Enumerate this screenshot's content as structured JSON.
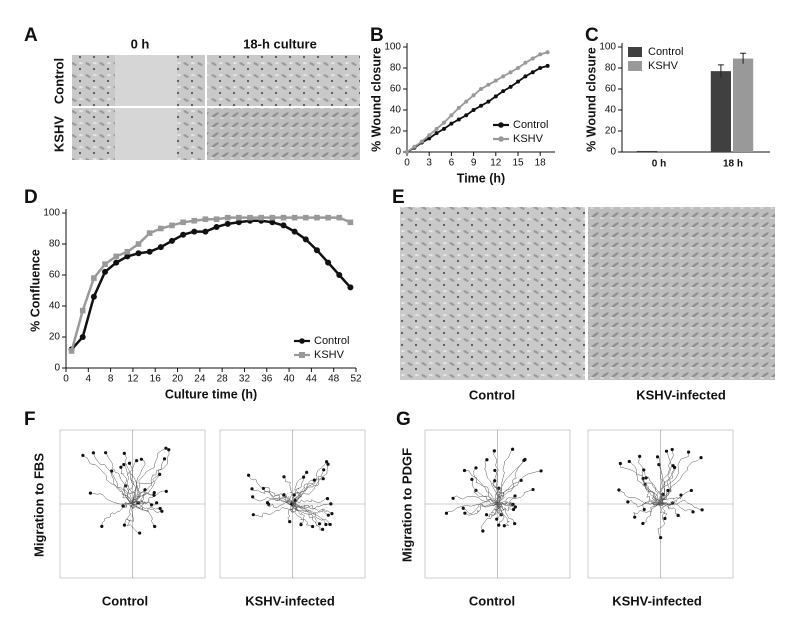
{
  "panel_letters": [
    "A",
    "B",
    "C",
    "D",
    "E",
    "F",
    "G"
  ],
  "panel_a": {
    "columns": [
      "0 h",
      "18-h culture"
    ],
    "rows": [
      "Control",
      "KSHV"
    ]
  },
  "panel_e": {
    "captions": [
      "Control",
      "KSHV-infected"
    ]
  },
  "panel_f": {
    "ylabel": "Migration to FBS",
    "captions": [
      "Control",
      "KSHV-infected"
    ]
  },
  "panel_g": {
    "ylabel": "Migration to PDGF",
    "captions": [
      "Control",
      "KSHV-infected"
    ]
  },
  "chart_data": [
    {
      "type": "line",
      "xlabel": "Time (h)",
      "ylabel": "% Wound closure",
      "x": [
        0,
        1,
        2,
        3,
        4,
        5,
        6,
        7,
        8,
        9,
        10,
        11,
        12,
        13,
        14,
        15,
        16,
        17,
        18,
        19
      ],
      "xlim": [
        0,
        20
      ],
      "xticks": [
        0,
        3,
        6,
        9,
        12,
        15,
        18
      ],
      "ylim": [
        0,
        100
      ],
      "yticks": [
        0,
        20,
        40,
        60,
        80,
        100
      ],
      "legend": "lower right",
      "series": [
        {
          "name": "Control",
          "color": "#111111",
          "marker": "circle",
          "values": [
            0,
            4,
            9,
            13,
            18,
            22,
            27,
            31,
            35,
            40,
            44,
            48,
            53,
            58,
            62,
            67,
            72,
            76,
            80,
            82
          ]
        },
        {
          "name": "KSHV",
          "color": "#999999",
          "marker": "circle",
          "values": [
            0,
            5,
            10,
            16,
            22,
            28,
            35,
            42,
            48,
            54,
            60,
            64,
            68,
            72,
            76,
            80,
            85,
            89,
            93,
            95
          ]
        }
      ]
    },
    {
      "type": "bar",
      "ylabel": "% Wound closure",
      "categories": [
        "0 h",
        "18 h"
      ],
      "ylim": [
        0,
        100
      ],
      "yticks": [
        0,
        20,
        40,
        60,
        80,
        100
      ],
      "legend": "upper left",
      "series": [
        {
          "name": "Control",
          "color": "#404040",
          "values": [
            1,
            77
          ],
          "errors": [
            0,
            6
          ]
        },
        {
          "name": "KSHV",
          "color": "#999999",
          "values": [
            1,
            89
          ],
          "errors": [
            0,
            5
          ]
        }
      ]
    },
    {
      "type": "line",
      "xlabel": "Culture time (h)",
      "ylabel": "% Confluence",
      "x": [
        1,
        3,
        5,
        7,
        9,
        11,
        13,
        15,
        17,
        19,
        21,
        23,
        25,
        27,
        29,
        31,
        33,
        35,
        37,
        39,
        41,
        43,
        45,
        47,
        49,
        51
      ],
      "xlim": [
        0,
        52
      ],
      "xticks": [
        0,
        4,
        8,
        12,
        16,
        20,
        24,
        28,
        32,
        36,
        40,
        44,
        48,
        52
      ],
      "ylim": [
        0,
        100
      ],
      "yticks": [
        0,
        20,
        40,
        60,
        80,
        100
      ],
      "legend": "lower right",
      "series": [
        {
          "name": "Control",
          "color": "#111111",
          "marker": "circle",
          "values": [
            12,
            20,
            46,
            62,
            68,
            72,
            74,
            75,
            78,
            82,
            86,
            88,
            88,
            91,
            93,
            94,
            95,
            95,
            94,
            92,
            88,
            83,
            76,
            68,
            60,
            52
          ]
        },
        {
          "name": "KSHV",
          "color": "#999999",
          "marker": "square",
          "values": [
            11,
            37,
            58,
            67,
            72,
            75,
            80,
            87,
            90,
            92,
            94,
            95,
            96,
            96,
            97,
            97,
            97,
            97,
            97,
            97,
            97,
            97,
            97,
            97,
            97,
            94
          ]
        }
      ]
    }
  ]
}
